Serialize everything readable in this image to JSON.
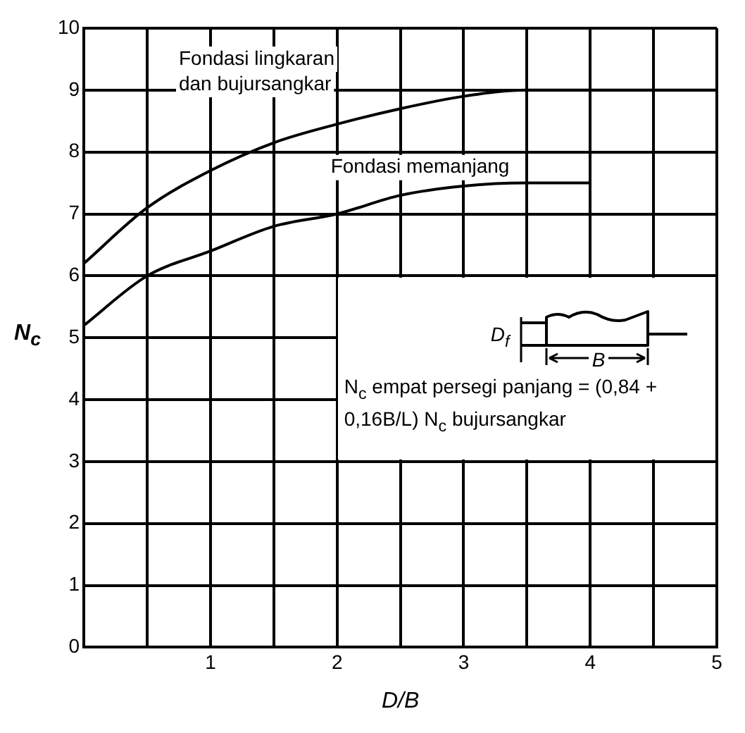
{
  "chart_data": {
    "type": "line",
    "xlabel": "D/B",
    "ylabel": "N$_{c}$",
    "x": [
      0,
      0.5,
      1,
      1.5,
      2,
      2.5,
      3,
      3.5,
      4,
      4.5,
      5
    ],
    "series": [
      {
        "name": "Fondasi lingkaran dan bujursangkar",
        "color": "#000000",
        "values": [
          6.2,
          7.1,
          7.7,
          8.15,
          8.45,
          8.7,
          8.9,
          9,
          9,
          9,
          9
        ]
      },
      {
        "name": "Fondasi memanjang",
        "color": "#000000",
        "values": [
          5.2,
          6,
          6.4,
          6.8,
          7,
          7.3,
          7.45,
          7.5,
          7.5,
          null,
          null
        ]
      }
    ],
    "xlim": [
      0,
      5
    ],
    "ylim": [
      0,
      10
    ],
    "xticks": [
      {
        "value": 0,
        "label": null
      },
      {
        "value": 0.5,
        "label": null
      },
      1,
      {
        "value": 1.5,
        "label": null
      },
      2,
      {
        "value": 2.5,
        "label": null
      },
      3,
      {
        "value": 3.5,
        "label": null
      },
      4,
      {
        "value": 4.5,
        "label": null
      },
      5
    ],
    "yticks": [
      0,
      1,
      2,
      3,
      4,
      5,
      6,
      7,
      8,
      9,
      10
    ],
    "grid": true,
    "legend": false,
    "marker": "none",
    "line_style": "solid",
    "annotations": [
      "D$_{f}$",
      "B",
      "N$_{c}$ empat persegi panjang = (0,84 + 0,16B/L) N$_{c}$ bujursangkar"
    ]
  }
}
